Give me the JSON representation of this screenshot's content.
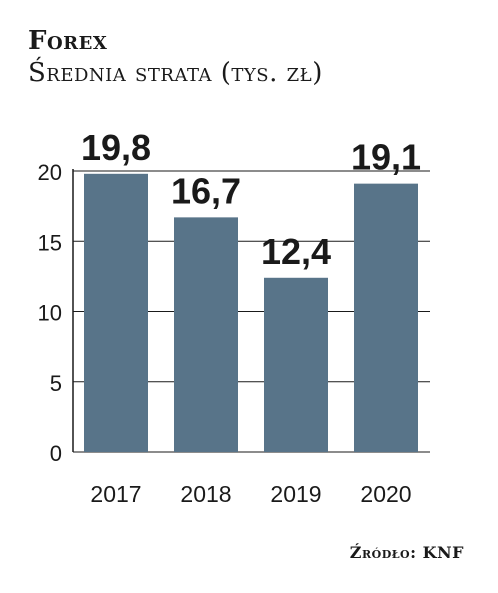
{
  "chart_data": {
    "type": "bar",
    "title": "Forex",
    "subtitle": "Średnia strata (tys. zł)",
    "categories": [
      "2017",
      "2018",
      "2019",
      "2020"
    ],
    "values": [
      19.8,
      16.7,
      12.4,
      19.1
    ],
    "value_labels": [
      "19,8",
      "16,7",
      "12,4",
      "19,1"
    ],
    "yticks": [
      "0",
      "5",
      "10",
      "15",
      "20"
    ],
    "ylim": [
      0,
      20
    ],
    "grid": true,
    "legend": "none",
    "bar_color": "#587489",
    "source": "Źródło: KNF"
  }
}
